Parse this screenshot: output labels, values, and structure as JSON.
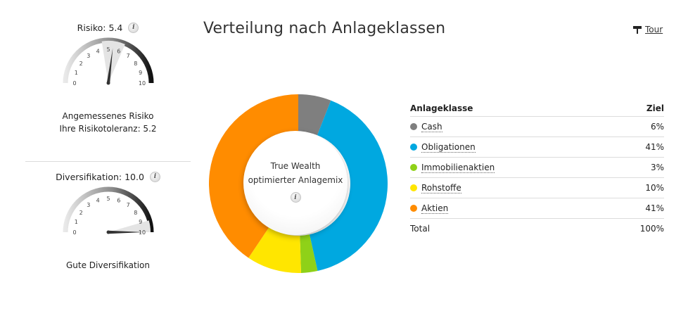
{
  "risk": {
    "title": "Risiko: 5.4",
    "value": 5.4,
    "ticks": [
      "0",
      "1",
      "2",
      "3",
      "4",
      "5",
      "6",
      "7",
      "8",
      "9",
      "10"
    ],
    "caption_line1": "Angemessenes Risiko",
    "caption_line2": "Ihre Risikotoleranz: 5.2"
  },
  "diversification": {
    "title": "Diversifikation: 10.0",
    "value": 10.0,
    "ticks": [
      "0",
      "1",
      "2",
      "3",
      "4",
      "5",
      "6",
      "7",
      "8",
      "9",
      "10"
    ],
    "caption": "Gute Diversifikation"
  },
  "main": {
    "title": "Verteilung nach Anlageklassen",
    "tour_label": "Tour",
    "center_line1": "True Wealth",
    "center_line2": "optimierter Anlagemix"
  },
  "table": {
    "col_class": "Anlageklasse",
    "col_target": "Ziel",
    "rows": [
      {
        "label": "Cash",
        "value": "6%",
        "color": "#7f7f7f"
      },
      {
        "label": "Obligationen",
        "value": "41%",
        "color": "#00a8e0"
      },
      {
        "label": "Immobilienaktien",
        "value": "3%",
        "color": "#8fd118"
      },
      {
        "label": "Rohstoffe",
        "value": "10%",
        "color": "#ffe600"
      },
      {
        "label": "Aktien",
        "value": "41%",
        "color": "#ff8c00"
      }
    ],
    "total_label": "Total",
    "total_value": "100%"
  },
  "chart_data": {
    "type": "pie",
    "categories": [
      "Cash",
      "Obligationen",
      "Immobilienaktien",
      "Rohstoffe",
      "Aktien"
    ],
    "values": [
      6,
      41,
      3,
      10,
      41
    ],
    "colors": [
      "#7f7f7f",
      "#00a8e0",
      "#8fd118",
      "#ffe600",
      "#ff8c00"
    ]
  }
}
